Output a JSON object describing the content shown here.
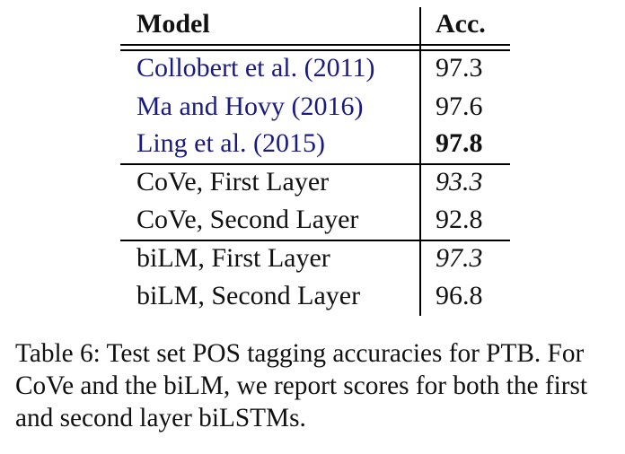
{
  "table": {
    "headers": {
      "model": "Model",
      "acc": "Acc."
    },
    "groups": [
      [
        {
          "model": "Collobert et al. (2011)",
          "acc": "97.3"
        },
        {
          "model": "Ma and Hovy (2016)",
          "acc": "97.6"
        },
        {
          "model": "Ling et al. (2015)",
          "acc": "97.8"
        }
      ],
      [
        {
          "model": "CoVe, First Layer",
          "acc": "93.3"
        },
        {
          "model": "CoVe, Second Layer",
          "acc": "92.8"
        }
      ],
      [
        {
          "model": "biLM, First Layer",
          "acc": "97.3"
        },
        {
          "model": "biLM, Second Layer",
          "acc": "96.8"
        }
      ]
    ]
  },
  "caption": "Table 6: Test set POS tagging accuracies for PTB. For CoVe and the biLM, we report scores for both the first and second layer biLSTMs."
}
